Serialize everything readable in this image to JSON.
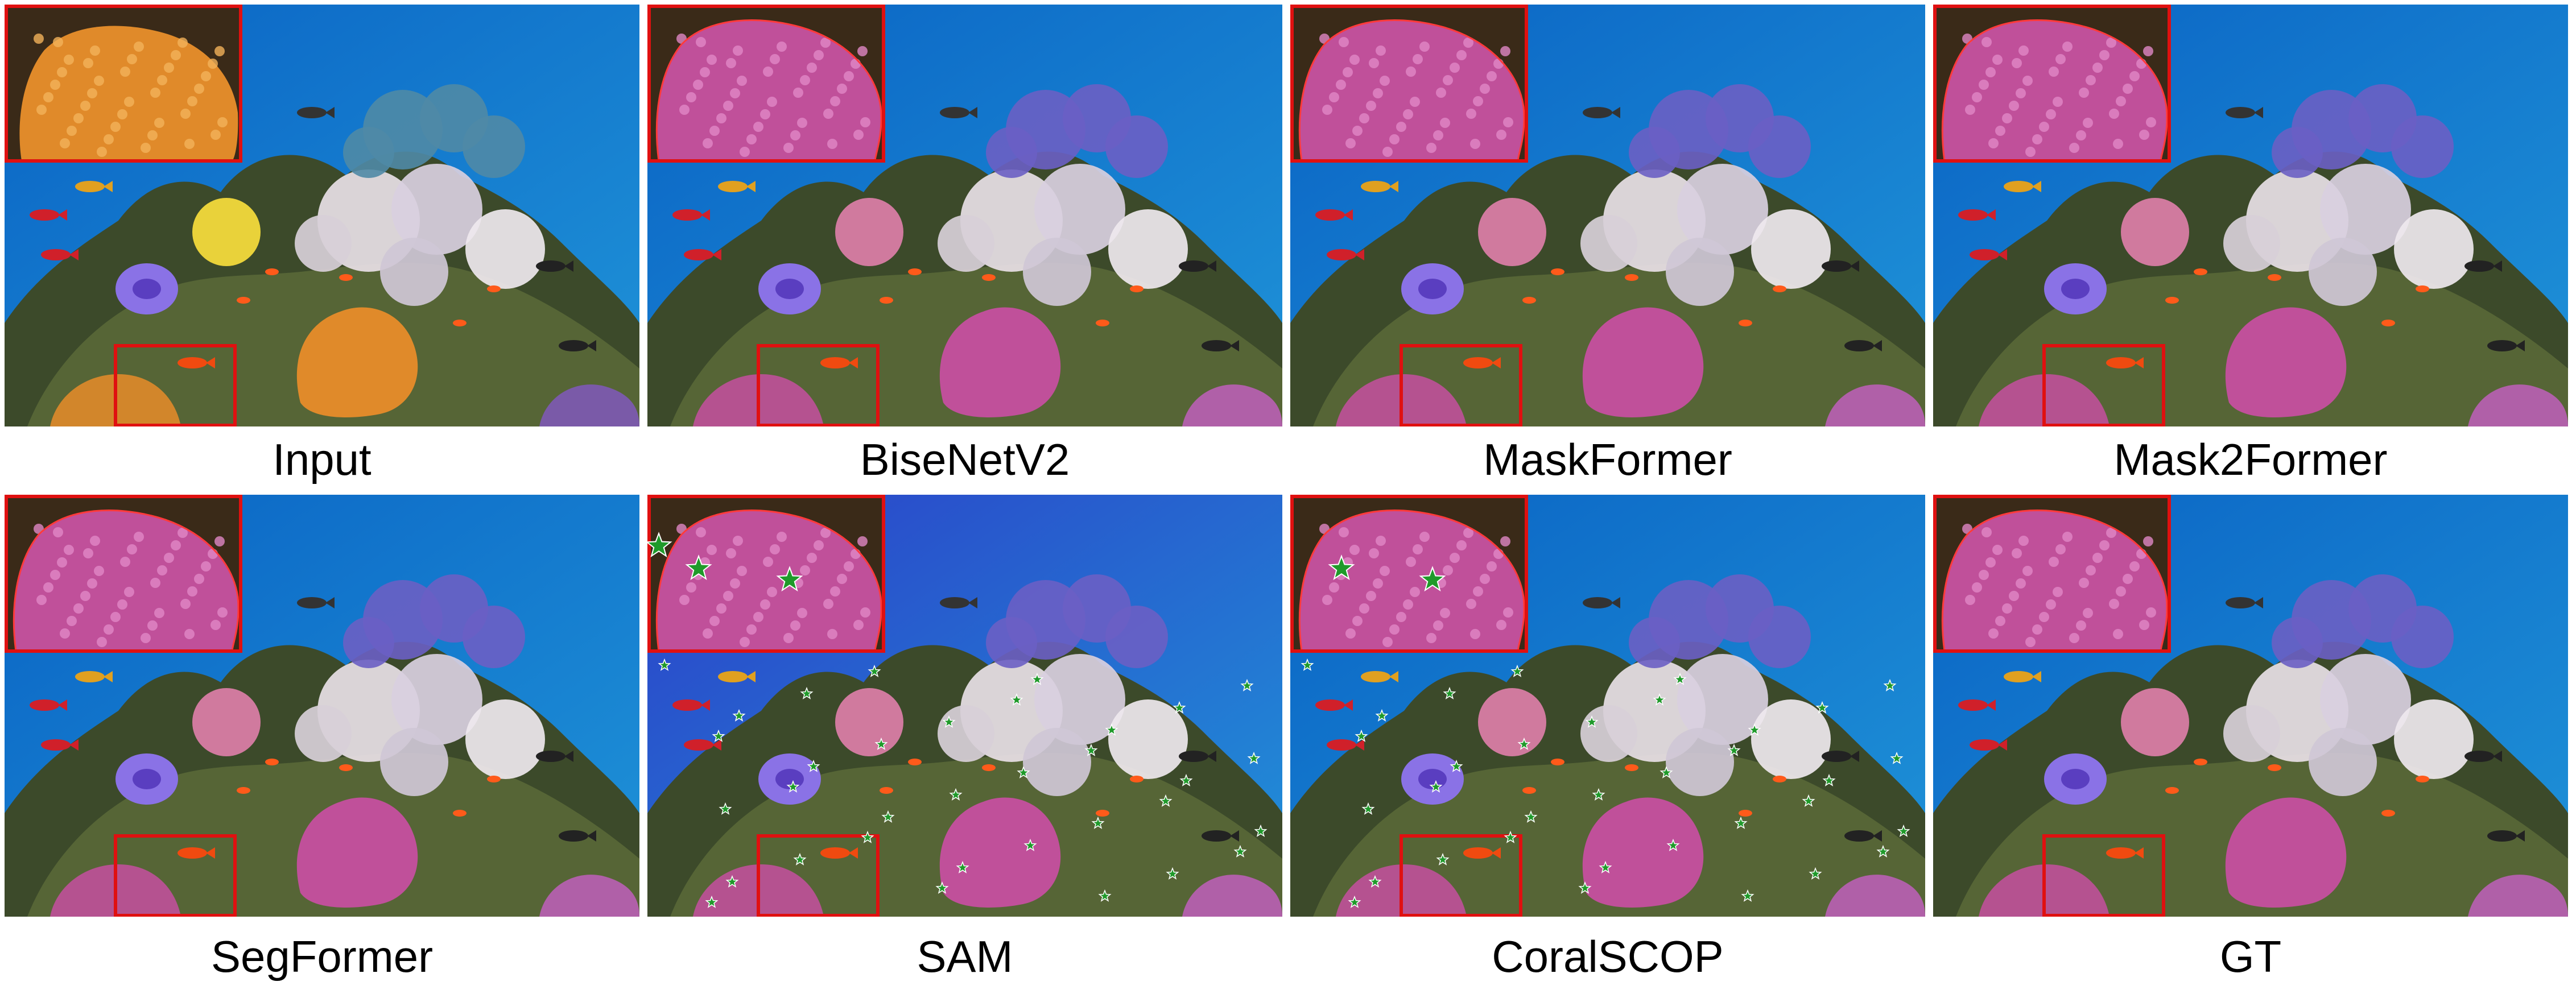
{
  "figure": {
    "panels": [
      {
        "id": "input",
        "label": "Input",
        "kind": "input",
        "prompt_stars": false
      },
      {
        "id": "bisenetv2",
        "label": "BiseNetV2",
        "kind": "segmentation",
        "prompt_stars": false
      },
      {
        "id": "maskformer",
        "label": "MaskFormer",
        "kind": "segmentation",
        "prompt_stars": false
      },
      {
        "id": "mask2former",
        "label": "Mask2Former",
        "kind": "segmentation",
        "prompt_stars": false
      },
      {
        "id": "segformer",
        "label": "SegFormer",
        "kind": "segmentation",
        "prompt_stars": false
      },
      {
        "id": "sam",
        "label": "SAM",
        "kind": "segmentation",
        "prompt_stars": true
      },
      {
        "id": "coralscop",
        "label": "CoralSCOP",
        "kind": "segmentation",
        "prompt_stars": true
      },
      {
        "id": "gt",
        "label": "GT",
        "kind": "segmentation",
        "prompt_stars": false
      }
    ]
  },
  "colors": {
    "water_top": "#0a63c4",
    "water_bottom": "#1f93d8",
    "inset_border": "#e01010",
    "mask_tint": "#c0509a",
    "coral_orange": "#e08a2a",
    "prompt_star": "#1f9a2a"
  }
}
